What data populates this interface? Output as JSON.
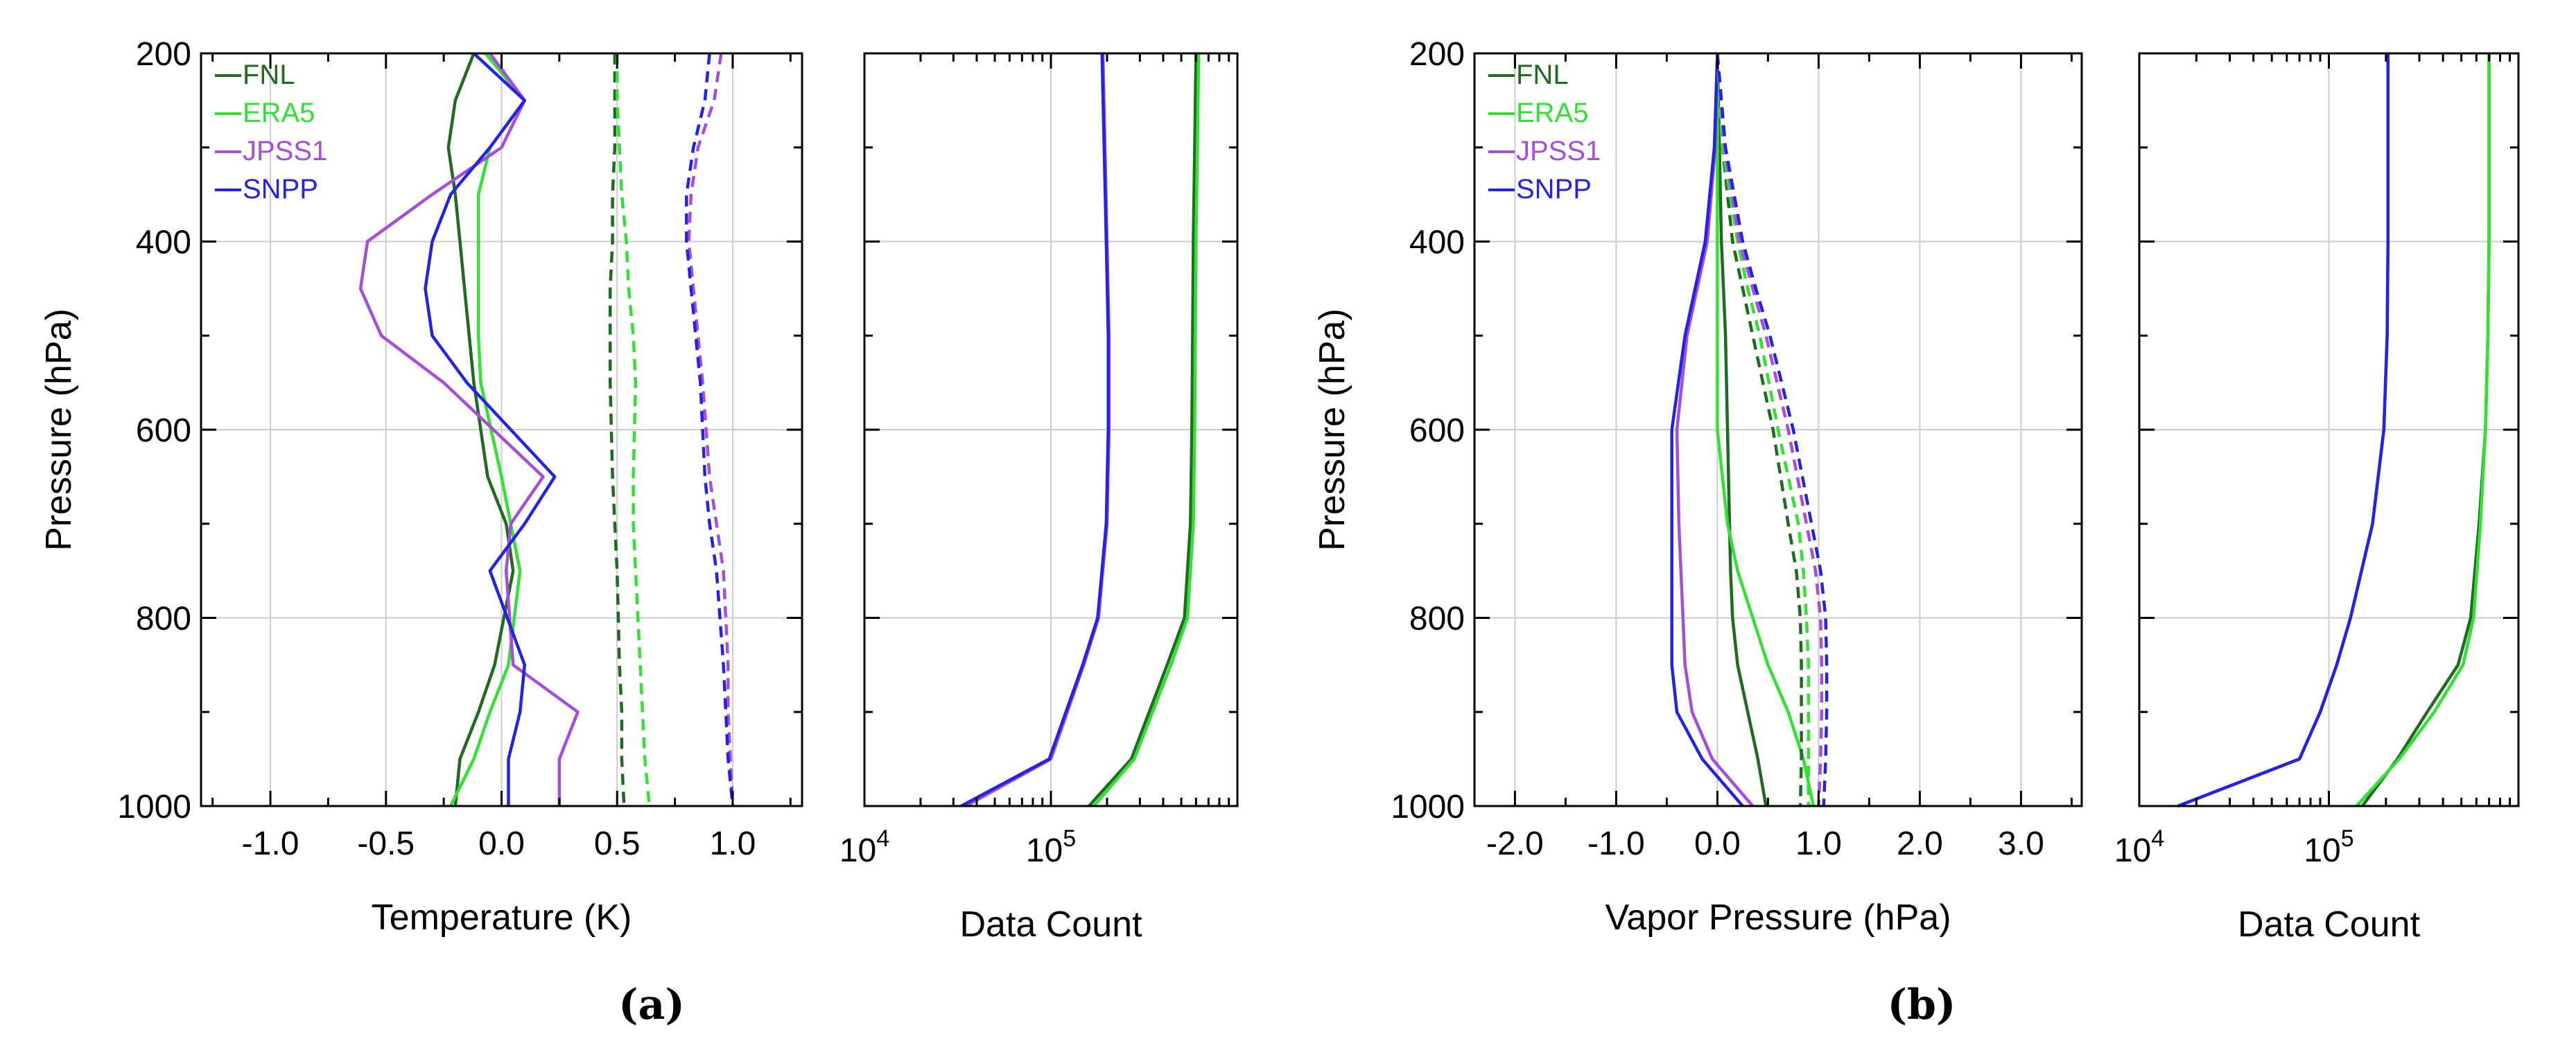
{
  "colors": {
    "FNL": "#1f6b1f",
    "ERA5": "#33e033",
    "JPSS1": "#a64dd9",
    "SNPP": "#2424e0",
    "grid": "#cccccc",
    "axis": "#000000"
  },
  "panel_labels": [
    "(a)",
    "(b)"
  ],
  "chart_data": [
    {
      "type": "line",
      "title": "",
      "panel": "(a)",
      "xlabel": "Temperature (K)",
      "ylabel": "Pressure (hPa)",
      "xlim": [
        -1.3,
        1.3
      ],
      "ylim": [
        1000,
        200
      ],
      "xticks": [
        -1.0,
        -0.5,
        0.0,
        0.5,
        1.0
      ],
      "xtick_labels": [
        "-1.0",
        "-0.5",
        "0.0",
        "0.5",
        "1.0"
      ],
      "yticks": [
        200,
        400,
        600,
        800,
        1000
      ],
      "ytick_labels": [
        "200",
        "400",
        "600",
        "800",
        "1000"
      ],
      "grid": true,
      "legend": {
        "position": "top-left",
        "entries": [
          "FNL",
          "ERA5",
          "JPSS1",
          "SNPP"
        ]
      },
      "series": [
        {
          "name": "FNL",
          "style": "solid",
          "x": [
            -0.12,
            -0.2,
            -0.23,
            -0.2,
            -0.18,
            -0.16,
            -0.14,
            -0.12,
            -0.06,
            0.02,
            0.05,
            -0.03,
            -0.1,
            -0.18,
            -0.2
          ],
          "y": [
            200,
            250,
            300,
            350,
            400,
            450,
            500,
            550,
            650,
            700,
            750,
            850,
            900,
            950,
            1000
          ]
        },
        {
          "name": "ERA5",
          "style": "solid",
          "x": [
            -0.07,
            0.1,
            -0.05,
            -0.1,
            -0.1,
            -0.1,
            -0.1,
            -0.09,
            0.0,
            0.04,
            0.08,
            0.03,
            -0.05,
            -0.12,
            -0.22
          ],
          "y": [
            200,
            250,
            300,
            350,
            400,
            450,
            500,
            550,
            650,
            700,
            750,
            850,
            900,
            950,
            1000
          ]
        },
        {
          "name": "JPSS1",
          "style": "solid",
          "x": [
            -0.05,
            0.1,
            0.0,
            -0.3,
            -0.58,
            -0.61,
            -0.52,
            -0.25,
            0.18,
            0.04,
            0.02,
            0.05,
            0.33,
            0.25,
            0.25
          ],
          "y": [
            200,
            250,
            300,
            350,
            400,
            450,
            500,
            550,
            650,
            700,
            750,
            850,
            900,
            950,
            1000
          ]
        },
        {
          "name": "SNPP",
          "style": "solid",
          "x": [
            -0.12,
            0.1,
            -0.05,
            -0.22,
            -0.3,
            -0.33,
            -0.3,
            -0.15,
            0.23,
            0.1,
            -0.05,
            0.1,
            0.08,
            0.03,
            0.03
          ],
          "y": [
            200,
            250,
            300,
            350,
            400,
            450,
            500,
            550,
            650,
            700,
            750,
            850,
            900,
            950,
            1000
          ]
        },
        {
          "name": "FNL",
          "style": "dashed",
          "x": [
            0.49,
            0.49,
            0.49,
            0.48,
            0.48,
            0.47,
            0.47,
            0.47,
            0.48,
            0.49,
            0.5,
            0.51,
            0.52,
            0.52,
            0.53
          ],
          "y": [
            200,
            250,
            300,
            350,
            400,
            450,
            500,
            550,
            650,
            700,
            750,
            850,
            900,
            950,
            1000
          ]
        },
        {
          "name": "ERA5",
          "style": "dashed",
          "x": [
            0.5,
            0.5,
            0.51,
            0.52,
            0.54,
            0.55,
            0.57,
            0.58,
            0.57,
            0.57,
            0.58,
            0.6,
            0.61,
            0.62,
            0.64
          ],
          "y": [
            200,
            250,
            300,
            350,
            400,
            450,
            500,
            550,
            650,
            700,
            750,
            850,
            900,
            950,
            1000
          ]
        },
        {
          "name": "JPSS1",
          "style": "dashed",
          "x": [
            0.95,
            0.92,
            0.85,
            0.82,
            0.81,
            0.83,
            0.85,
            0.87,
            0.9,
            0.93,
            0.96,
            0.98,
            0.98,
            0.99,
            1.0
          ],
          "y": [
            200,
            250,
            300,
            350,
            400,
            450,
            500,
            550,
            650,
            700,
            750,
            850,
            900,
            950,
            1000
          ]
        },
        {
          "name": "SNPP",
          "style": "dashed",
          "x": [
            0.9,
            0.88,
            0.83,
            0.8,
            0.8,
            0.82,
            0.84,
            0.86,
            0.88,
            0.9,
            0.93,
            0.96,
            0.97,
            0.98,
            1.0
          ],
          "y": [
            200,
            250,
            300,
            350,
            400,
            450,
            500,
            550,
            650,
            700,
            750,
            850,
            900,
            950,
            1000
          ]
        }
      ]
    },
    {
      "type": "line",
      "title": "",
      "panel": "(a)",
      "xlabel": "Data Count",
      "ylabel": "",
      "xscale": "log",
      "xlim": [
        10000,
        1000000
      ],
      "ylim": [
        1000,
        200
      ],
      "xticks": [
        10000,
        100000
      ],
      "xtick_base": "10",
      "xtick_exponents": [
        "4",
        "5"
      ],
      "grid": true,
      "series": [
        {
          "name": "FNL",
          "x": [
            600000,
            590000,
            580000,
            575000,
            570000,
            560000,
            520000,
            420000,
            270000,
            160000
          ],
          "y": [
            200,
            300,
            400,
            500,
            600,
            700,
            800,
            850,
            950,
            1000
          ]
        },
        {
          "name": "ERA5",
          "x": [
            620000,
            610000,
            600000,
            595000,
            590000,
            580000,
            540000,
            440000,
            280000,
            170000
          ],
          "y": [
            200,
            300,
            400,
            500,
            600,
            700,
            800,
            850,
            950,
            1000
          ]
        },
        {
          "name": "JPSS1",
          "x": [
            190000,
            195000,
            200000,
            205000,
            205000,
            200000,
            180000,
            150000,
            100000,
            35000
          ],
          "y": [
            200,
            300,
            400,
            500,
            600,
            700,
            800,
            850,
            950,
            1000
          ]
        },
        {
          "name": "SNPP",
          "x": [
            188000,
            193000,
            198000,
            203000,
            203000,
            198000,
            178000,
            148000,
            98000,
            33000
          ],
          "y": [
            200,
            300,
            400,
            500,
            600,
            700,
            800,
            850,
            950,
            1000
          ]
        }
      ]
    },
    {
      "type": "line",
      "title": "",
      "panel": "(b)",
      "xlabel": "Vapor Pressure (hPa)",
      "ylabel": "Pressure (hPa)",
      "xlim": [
        -2.4,
        3.6
      ],
      "ylim": [
        1000,
        200
      ],
      "xticks": [
        -2.0,
        -1.0,
        0.0,
        1.0,
        2.0,
        3.0
      ],
      "xtick_labels": [
        "-2.0",
        "-1.0",
        "0.0",
        "1.0",
        "2.0",
        "3.0"
      ],
      "yticks": [
        200,
        400,
        600,
        800,
        1000
      ],
      "ytick_labels": [
        "200",
        "400",
        "600",
        "800",
        "1000"
      ],
      "grid": true,
      "legend": {
        "position": "top-left",
        "entries": [
          "FNL",
          "ERA5",
          "JPSS1",
          "SNPP"
        ]
      },
      "series": [
        {
          "name": "FNL",
          "style": "solid",
          "x": [
            0.0,
            0.02,
            0.04,
            0.06,
            0.08,
            0.1,
            0.12,
            0.13,
            0.15,
            0.2,
            0.3,
            0.4,
            0.48
          ],
          "y": [
            200,
            300,
            400,
            450,
            500,
            600,
            700,
            750,
            800,
            850,
            900,
            950,
            1000
          ]
        },
        {
          "name": "ERA5",
          "style": "solid",
          "x": [
            0.0,
            0.0,
            0.0,
            0.0,
            0.0,
            0.0,
            0.1,
            0.2,
            0.35,
            0.5,
            0.7,
            0.85,
            0.95
          ],
          "y": [
            200,
            300,
            400,
            450,
            500,
            600,
            700,
            750,
            800,
            850,
            900,
            950,
            1000
          ]
        },
        {
          "name": "JPSS1",
          "style": "solid",
          "x": [
            0.0,
            -0.02,
            -0.1,
            -0.2,
            -0.3,
            -0.4,
            -0.38,
            -0.36,
            -0.34,
            -0.32,
            -0.25,
            -0.05,
            0.35
          ],
          "y": [
            200,
            300,
            400,
            450,
            500,
            600,
            700,
            750,
            800,
            850,
            900,
            950,
            1000
          ]
        },
        {
          "name": "SNPP",
          "style": "solid",
          "x": [
            0.0,
            -0.03,
            -0.12,
            -0.22,
            -0.32,
            -0.45,
            -0.45,
            -0.45,
            -0.45,
            -0.45,
            -0.4,
            -0.15,
            0.25
          ],
          "y": [
            200,
            300,
            400,
            450,
            500,
            600,
            700,
            750,
            800,
            850,
            900,
            950,
            1000
          ]
        },
        {
          "name": "FNL",
          "style": "dashed",
          "x": [
            0.0,
            0.05,
            0.15,
            0.25,
            0.35,
            0.55,
            0.7,
            0.78,
            0.82,
            0.83,
            0.83,
            0.83,
            0.82
          ],
          "y": [
            200,
            300,
            400,
            450,
            500,
            600,
            700,
            750,
            800,
            850,
            900,
            950,
            1000
          ]
        },
        {
          "name": "ERA5",
          "style": "dashed",
          "x": [
            0.0,
            0.05,
            0.2,
            0.3,
            0.42,
            0.6,
            0.8,
            0.85,
            0.88,
            0.9,
            0.9,
            0.9,
            0.9
          ],
          "y": [
            200,
            300,
            400,
            450,
            500,
            600,
            700,
            750,
            800,
            850,
            900,
            950,
            1000
          ]
        },
        {
          "name": "JPSS1",
          "style": "dashed",
          "x": [
            0.0,
            0.07,
            0.22,
            0.35,
            0.48,
            0.7,
            0.88,
            0.97,
            1.02,
            1.03,
            1.03,
            1.02,
            1.0
          ],
          "y": [
            200,
            300,
            400,
            450,
            500,
            600,
            700,
            750,
            800,
            850,
            900,
            950,
            1000
          ]
        },
        {
          "name": "SNPP",
          "style": "dashed",
          "x": [
            0.0,
            0.08,
            0.25,
            0.38,
            0.52,
            0.75,
            0.93,
            1.02,
            1.07,
            1.08,
            1.08,
            1.07,
            1.05
          ],
          "y": [
            200,
            300,
            400,
            450,
            500,
            600,
            700,
            750,
            800,
            850,
            900,
            950,
            1000
          ]
        }
      ]
    },
    {
      "type": "line",
      "title": "",
      "panel": "(b)",
      "xlabel": "Data Count",
      "ylabel": "",
      "xscale": "log",
      "xlim": [
        10000,
        1000000
      ],
      "ylim": [
        1000,
        200
      ],
      "xticks": [
        10000,
        100000
      ],
      "xtick_base": "10",
      "xtick_exponents": [
        "4",
        "5"
      ],
      "grid": true,
      "series": [
        {
          "name": "FNL",
          "x": [
            700000,
            700000,
            700000,
            690000,
            670000,
            620000,
            560000,
            480000,
            330000,
            230000,
            150000
          ],
          "y": [
            200,
            300,
            400,
            500,
            600,
            700,
            800,
            850,
            900,
            950,
            1000
          ]
        },
        {
          "name": "ERA5",
          "x": [
            700000,
            700000,
            700000,
            690000,
            670000,
            630000,
            580000,
            510000,
            360000,
            235000,
            140000
          ],
          "y": [
            200,
            300,
            400,
            500,
            600,
            700,
            800,
            850,
            900,
            950,
            1000
          ]
        },
        {
          "name": "JPSS1",
          "x": [
            205000,
            205000,
            205000,
            203000,
            195000,
            170000,
            130000,
            110000,
            90000,
            70000,
            16000
          ],
          "y": [
            200,
            300,
            400,
            500,
            600,
            700,
            800,
            850,
            900,
            950,
            1000
          ]
        },
        {
          "name": "SNPP",
          "x": [
            205000,
            205000,
            205000,
            203000,
            195000,
            170000,
            130000,
            110000,
            90000,
            70000,
            16000
          ],
          "y": [
            200,
            300,
            400,
            500,
            600,
            700,
            800,
            850,
            900,
            950,
            1000
          ]
        }
      ]
    }
  ]
}
